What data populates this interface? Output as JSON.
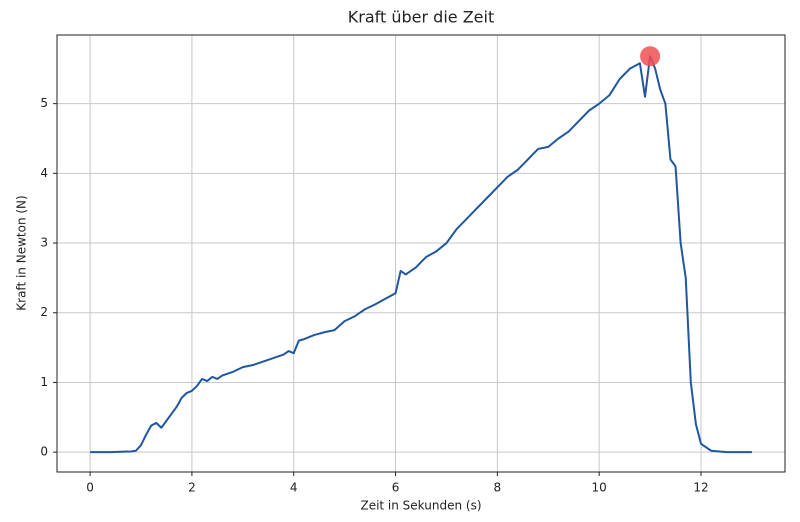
{
  "chart_data": {
    "type": "line",
    "title": "Kraft über die Zeit",
    "x_label": "Zeit in Sekunden (s)",
    "y_label": "Kraft in Newton (N)",
    "x": [
      0,
      0.4,
      0.8,
      0.9,
      1.0,
      1.1,
      1.2,
      1.3,
      1.4,
      1.5,
      1.6,
      1.7,
      1.8,
      1.9,
      2.0,
      2.1,
      2.2,
      2.3,
      2.4,
      2.5,
      2.6,
      2.8,
      3.0,
      3.2,
      3.4,
      3.6,
      3.8,
      3.9,
      4.0,
      4.1,
      4.2,
      4.4,
      4.6,
      4.8,
      5.0,
      5.2,
      5.4,
      5.6,
      5.8,
      6.0,
      6.1,
      6.2,
      6.4,
      6.6,
      6.8,
      7.0,
      7.2,
      7.4,
      7.6,
      7.8,
      8.0,
      8.2,
      8.4,
      8.6,
      8.8,
      9.0,
      9.2,
      9.4,
      9.6,
      9.8,
      10.0,
      10.2,
      10.4,
      10.6,
      10.8,
      10.9,
      11.0,
      11.1,
      11.2,
      11.3,
      11.4,
      11.5,
      11.6,
      11.7,
      11.8,
      11.9,
      12.0,
      12.2,
      12.5,
      13.0
    ],
    "series": [
      {
        "name": "Kraft",
        "color": "#1f57a0",
        "values": [
          0,
          0,
          0.01,
          0.02,
          0.1,
          0.25,
          0.38,
          0.42,
          0.35,
          0.45,
          0.55,
          0.65,
          0.78,
          0.85,
          0.88,
          0.95,
          1.05,
          1.02,
          1.08,
          1.05,
          1.1,
          1.15,
          1.22,
          1.25,
          1.3,
          1.35,
          1.4,
          1.45,
          1.42,
          1.6,
          1.62,
          1.68,
          1.72,
          1.75,
          1.88,
          1.95,
          2.05,
          2.12,
          2.2,
          2.28,
          2.6,
          2.55,
          2.65,
          2.8,
          2.88,
          3.0,
          3.2,
          3.35,
          3.5,
          3.65,
          3.8,
          3.95,
          4.05,
          4.2,
          4.35,
          4.38,
          4.5,
          4.6,
          4.75,
          4.9,
          5.0,
          5.12,
          5.35,
          5.5,
          5.58,
          5.1,
          5.68,
          5.5,
          5.2,
          5.0,
          4.2,
          4.1,
          3.0,
          2.5,
          1.0,
          0.4,
          0.12,
          0.02,
          0,
          0
        ]
      }
    ],
    "peak": {
      "x": 11.0,
      "y": 5.68,
      "color": "#f05050"
    },
    "xlim": [
      -0.65,
      13.65
    ],
    "ylim": [
      -0.285,
      5.985
    ],
    "xticks": [
      0,
      2,
      4,
      6,
      8,
      10,
      12
    ],
    "yticks": [
      0,
      1,
      2,
      3,
      4,
      5
    ],
    "grid": true
  }
}
